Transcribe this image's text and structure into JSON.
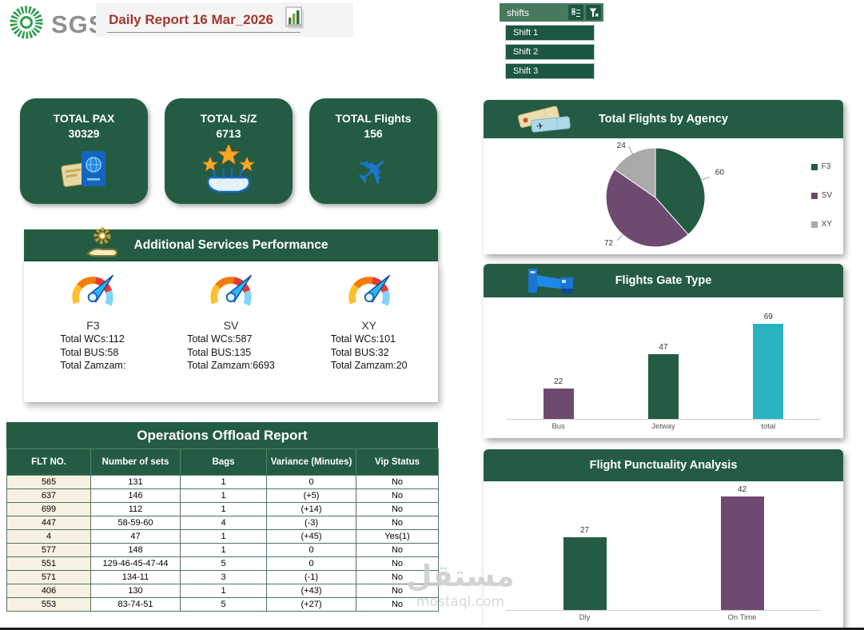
{
  "theme": {
    "brand_green": "#245c43",
    "purple": "#6e4a70",
    "teal": "#29b3c1",
    "gray": "#a9a9a9",
    "title_red": "#a3372e"
  },
  "header": {
    "logo_text": "SGS",
    "title": "Daily Report 16 Mar_2026"
  },
  "shifts": {
    "label": "shifts",
    "items": [
      "Shift 1",
      "Shift 2",
      "Shift 3"
    ]
  },
  "kpis": [
    {
      "label": "TOTAL PAX",
      "value": "30329",
      "icon": "passport-icon"
    },
    {
      "label": "TOTAL S/Z",
      "value": "6713",
      "icon": "stars-hand-icon"
    },
    {
      "label": "TOTAL Flights",
      "value": "156",
      "icon": "airplane-icon"
    }
  ],
  "services": {
    "title": "Additional Services Performance",
    "items": [
      {
        "name": "F3",
        "lines": [
          "Total WCs:112",
          "Total BUS:58",
          "Total Zamzam:"
        ]
      },
      {
        "name": "SV",
        "lines": [
          "Total WCs:587",
          "Total BUS:135",
          "Total Zamzam:6693"
        ]
      },
      {
        "name": "XY",
        "lines": [
          "Total WCs:101",
          "Total BUS:32",
          "Total Zamzam:20"
        ]
      }
    ]
  },
  "offload_table": {
    "title": "Operations Offload Report",
    "columns": [
      "FLT NO.",
      "Number of sets",
      "Bags",
      "Variance (Minutes)",
      "Vip Status"
    ],
    "rows": [
      [
        "565",
        "131",
        "1",
        "0",
        "No"
      ],
      [
        "637",
        "146",
        "1",
        "(+5)",
        "No"
      ],
      [
        "699",
        "112",
        "1",
        "(+14)",
        "No"
      ],
      [
        "447",
        "58-59-60",
        "4",
        "(-3)",
        "No"
      ],
      [
        "4",
        "47",
        "1",
        "(+45)",
        "Yes(1)"
      ],
      [
        "577",
        "148",
        "1",
        "0",
        "No"
      ],
      [
        "551",
        "129-46-45-47-44",
        "5",
        "0",
        "No"
      ],
      [
        "571",
        "134-11",
        "3",
        "(-1)",
        "No"
      ],
      [
        "406",
        "130",
        "1",
        "(+43)",
        "No"
      ],
      [
        "553",
        "83-74-51",
        "5",
        "(+27)",
        "No"
      ]
    ]
  },
  "chart_data": [
    {
      "type": "pie",
      "title": "Total Flights by Agency",
      "categories": [
        "F3",
        "SV",
        "XY"
      ],
      "values": [
        60,
        72,
        24
      ],
      "colors": [
        "#245c43",
        "#6e4a70",
        "#a9a9a9"
      ],
      "legend_position": "right",
      "data_labels": true
    },
    {
      "type": "bar",
      "title": "Flights Gate Type",
      "categories": [
        "Bus",
        "Jetway",
        "total"
      ],
      "values": [
        22,
        47,
        69
      ],
      "colors": [
        "#6e4a70",
        "#245c43",
        "#29b3c1"
      ],
      "ylim": [
        0,
        69
      ],
      "grid": false,
      "data_labels": true
    },
    {
      "type": "bar",
      "title": "Flight Punctuality Analysis",
      "categories": [
        "Dly",
        "On Time"
      ],
      "values": [
        27,
        42
      ],
      "colors": [
        "#245c43",
        "#6e4a70"
      ],
      "ylim": [
        0,
        42
      ],
      "grid": false,
      "data_labels": true
    }
  ],
  "watermark": {
    "arabic": "مستقل",
    "domain": "mostaql.com"
  }
}
